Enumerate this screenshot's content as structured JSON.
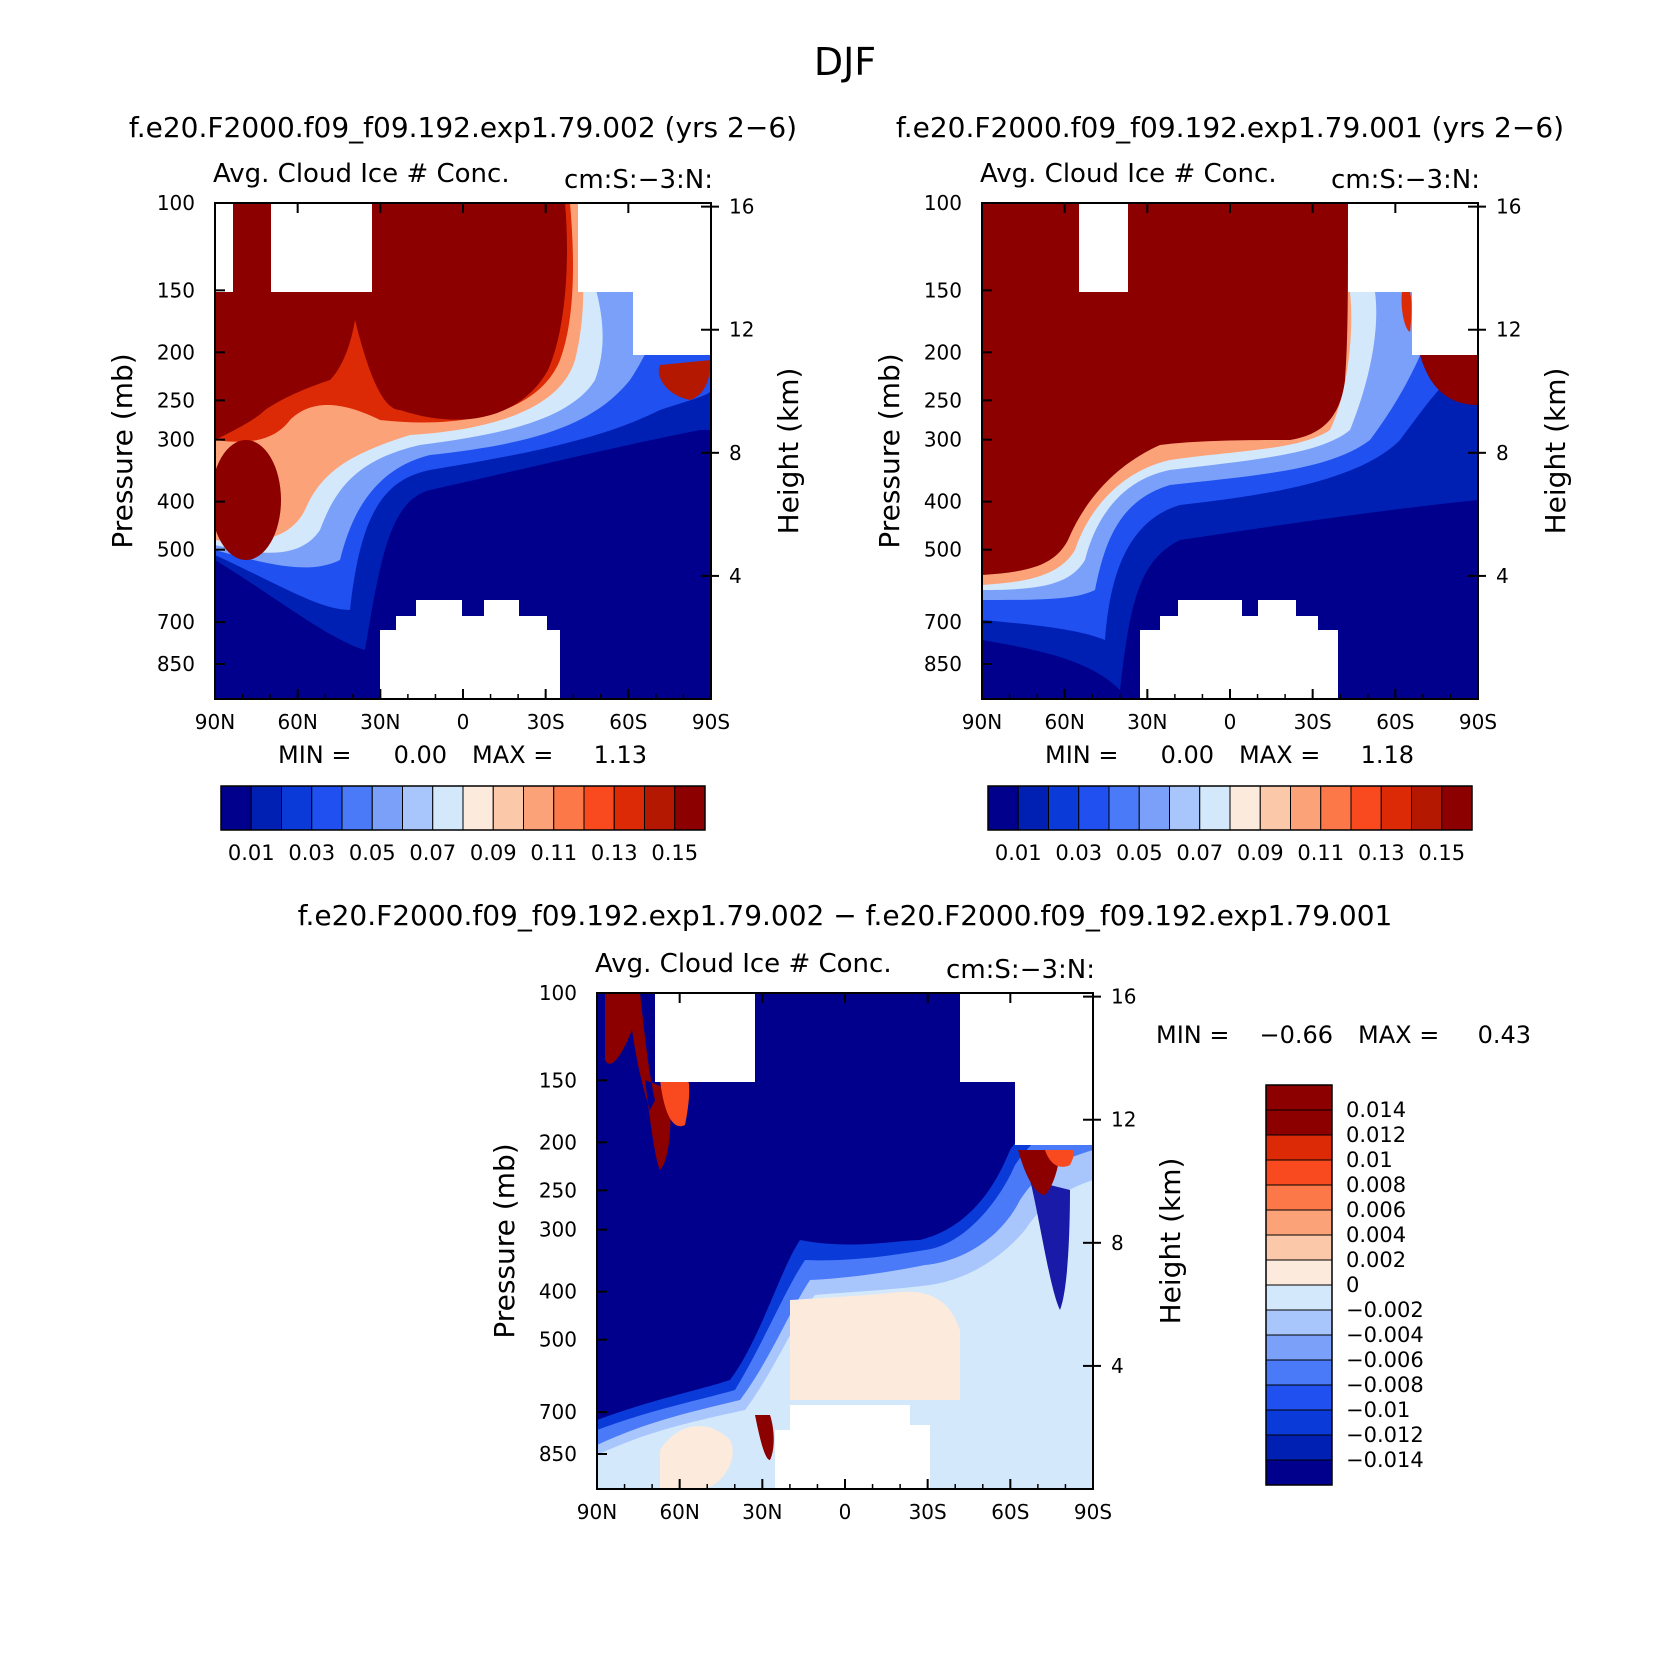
{
  "figure": {
    "title": "DJF",
    "difference_title": "f.e20.F2000.f09_f09.192.exp1.79.002 − f.e20.F2000.f09_f09.192.exp1.79.001"
  },
  "colors": {
    "abs_palette": [
      "#00008c",
      "#0020b4",
      "#0a3ad8",
      "#2050f0",
      "#4a7af8",
      "#7aa0fa",
      "#a8c6fc",
      "#d4e8fc",
      "#fceadc",
      "#fcc8aa",
      "#fca278",
      "#fc7848",
      "#f84a1e",
      "#dc2a06",
      "#b41800",
      "#8c0000"
    ],
    "diff_palette": [
      "#00008c",
      "#0020b4",
      "#0a3ad8",
      "#2050f0",
      "#4a7af8",
      "#7aa0fa",
      "#a8c6fc",
      "#d4e8fc",
      "#fceadc",
      "#fcc8aa",
      "#fca278",
      "#fc7848",
      "#f84a1e",
      "#dc2a06",
      "#8c0000"
    ]
  },
  "chart_data": [
    {
      "type": "heatmap",
      "panel_title": "f.e20.F2000.f09_f09.192.exp1.79.002 (yrs 2−6)",
      "left_string": "Avg. Cloud Ice # Conc.",
      "right_string": "cm:S:−3:N:",
      "xlabel": "",
      "ylabel": "Pressure (mb)",
      "y2label": "Height (km)",
      "x_ticks": [
        "90N",
        "60N",
        "30N",
        "0",
        "30S",
        "60S",
        "90S"
      ],
      "y_ticks": [
        100,
        150,
        200,
        250,
        300,
        400,
        500,
        700,
        850
      ],
      "y_range_mb": [
        100,
        1000
      ],
      "y2_ticks_km": [
        4,
        8,
        12,
        16
      ],
      "min_label": "MIN =",
      "min_value": "0.00",
      "max_label": "MAX =",
      "max_value": "1.13",
      "colorbar_labels": [
        "0.01",
        "0.03",
        "0.05",
        "0.07",
        "0.09",
        "0.11",
        "0.13",
        "0.15"
      ],
      "colorbar_levels": [
        0.01,
        0.02,
        0.03,
        0.04,
        0.05,
        0.06,
        0.07,
        0.08,
        0.09,
        0.1,
        0.11,
        0.12,
        0.13,
        0.14,
        0.15
      ]
    },
    {
      "type": "heatmap",
      "panel_title": "f.e20.F2000.f09_f09.192.exp1.79.001 (yrs 2−6)",
      "left_string": "Avg. Cloud Ice # Conc.",
      "right_string": "cm:S:−3:N:",
      "xlabel": "",
      "ylabel": "Pressure (mb)",
      "y2label": "Height (km)",
      "x_ticks": [
        "90N",
        "60N",
        "30N",
        "0",
        "30S",
        "60S",
        "90S"
      ],
      "y_ticks": [
        100,
        150,
        200,
        250,
        300,
        400,
        500,
        700,
        850
      ],
      "y_range_mb": [
        100,
        1000
      ],
      "y2_ticks_km": [
        4,
        8,
        12,
        16
      ],
      "min_label": "MIN =",
      "min_value": "0.00",
      "max_label": "MAX =",
      "max_value": "1.18",
      "colorbar_labels": [
        "0.01",
        "0.03",
        "0.05",
        "0.07",
        "0.09",
        "0.11",
        "0.13",
        "0.15"
      ],
      "colorbar_levels": [
        0.01,
        0.02,
        0.03,
        0.04,
        0.05,
        0.06,
        0.07,
        0.08,
        0.09,
        0.1,
        0.11,
        0.12,
        0.13,
        0.14,
        0.15
      ]
    },
    {
      "type": "heatmap",
      "panel_title": "",
      "left_string": "Avg. Cloud Ice # Conc.",
      "right_string": "cm:S:−3:N:",
      "xlabel": "",
      "ylabel": "Pressure (mb)",
      "y2label": "Height (km)",
      "x_ticks": [
        "90N",
        "60N",
        "30N",
        "0",
        "30S",
        "60S",
        "90S"
      ],
      "y_ticks": [
        100,
        150,
        200,
        250,
        300,
        400,
        500,
        700,
        850
      ],
      "y_range_mb": [
        100,
        1000
      ],
      "y2_ticks_km": [
        4,
        8,
        12,
        16
      ],
      "min_label": "MIN =",
      "min_value": "−0.66",
      "max_label": "MAX =",
      "max_value": "0.43",
      "colorbar_labels": [
        "0.014",
        "0.012",
        "0.01",
        "0.008",
        "0.006",
        "0.004",
        "0.002",
        "0",
        "−0.002",
        "−0.004",
        "−0.006",
        "−0.008",
        "−0.01",
        "−0.012",
        "−0.014"
      ],
      "colorbar_levels": [
        -0.014,
        -0.012,
        -0.01,
        -0.008,
        -0.006,
        -0.004,
        -0.002,
        0,
        0.002,
        0.004,
        0.006,
        0.008,
        0.01,
        0.012,
        0.014
      ]
    }
  ]
}
